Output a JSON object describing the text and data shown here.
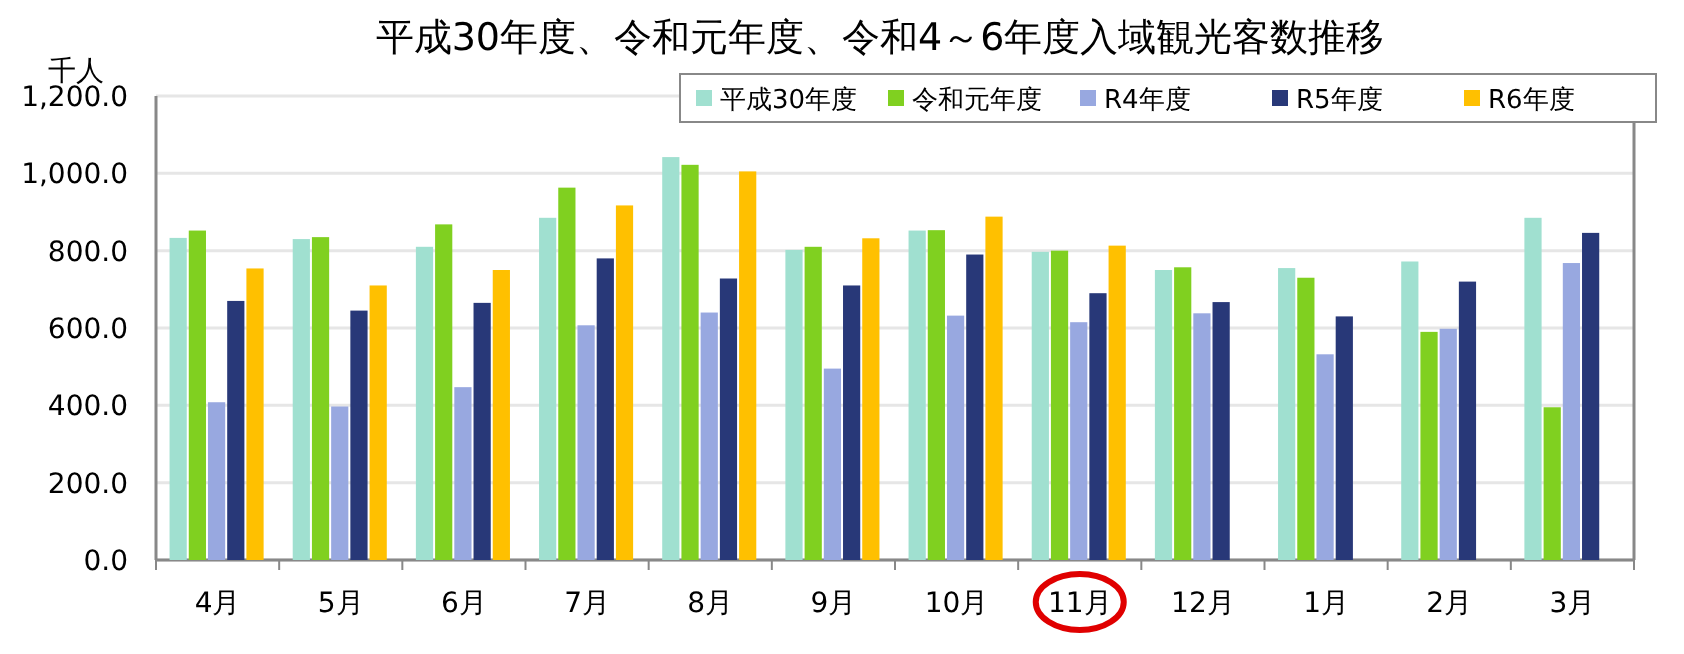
{
  "chart_data": {
    "type": "bar",
    "title": "平成30年度、令和元年度、令和4～6年度入域観光客数推移",
    "ylabel": "千人",
    "categories": [
      "4月",
      "5月",
      "6月",
      "7月",
      "8月",
      "9月",
      "10月",
      "11月",
      "12月",
      "1月",
      "2月",
      "3月"
    ],
    "series": [
      {
        "name": "平成30年度",
        "color": "#a0e0d0",
        "values": [
          833,
          830,
          810,
          885,
          1042,
          802,
          852,
          797,
          750,
          755,
          772,
          885
        ]
      },
      {
        "name": "令和元年度",
        "color": "#80d020",
        "values": [
          852,
          835,
          868,
          963,
          1022,
          810,
          853,
          800,
          757,
          730,
          590,
          395
        ]
      },
      {
        "name": "R4年度",
        "color": "#98a8e0",
        "values": [
          408,
          397,
          447,
          607,
          640,
          495,
          632,
          615,
          638,
          532,
          598,
          768
        ]
      },
      {
        "name": "R5年度",
        "color": "#283878",
        "values": [
          670,
          645,
          665,
          780,
          728,
          710,
          790,
          690,
          667,
          630,
          720,
          846
        ]
      },
      {
        "name": "R6年度",
        "color": "#ffc000",
        "values": [
          754,
          710,
          750,
          917,
          1005,
          832,
          888,
          813,
          null,
          null,
          null,
          null
        ]
      }
    ],
    "ylim": [
      0,
      1200
    ],
    "yticks": [
      {
        "value": 0,
        "label": "0.0"
      },
      {
        "value": 200,
        "label": "200.0"
      },
      {
        "value": 400,
        "label": "400.0"
      },
      {
        "value": 600,
        "label": "600.0"
      },
      {
        "value": 800,
        "label": "800.0"
      },
      {
        "value": 1000,
        "label": "1,000.0"
      },
      {
        "value": 1200,
        "label": "1,200.0"
      }
    ],
    "grid": "y",
    "legend": "top right"
  }
}
